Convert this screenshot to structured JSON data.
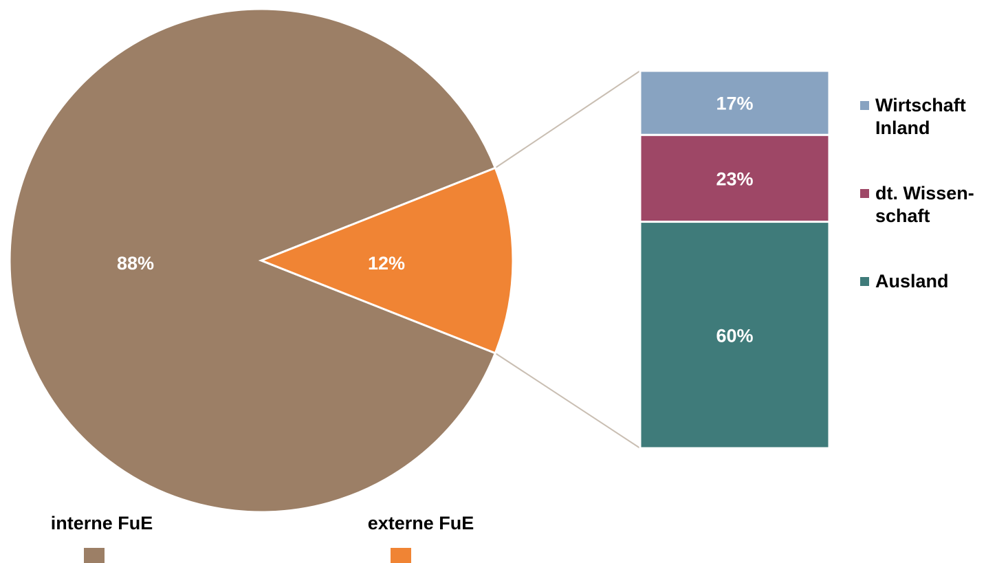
{
  "chart_data": {
    "type": "bar-of-pie",
    "pie": {
      "slices": [
        {
          "name": "interne FuE",
          "value": 88,
          "label": "88%",
          "color": "#9c7f66"
        },
        {
          "name": "externe FuE",
          "value": 12,
          "label": "12%",
          "color": "#f08434"
        }
      ]
    },
    "bar": {
      "breakdown_of": "externe FuE",
      "segments": [
        {
          "name_lines": [
            "Wirtschaft",
            "Inland"
          ],
          "value": 17,
          "label": "17%",
          "color": "#88a3c1"
        },
        {
          "name_lines": [
            "dt. Wissen-",
            "schaft"
          ],
          "value": 23,
          "label": "23%",
          "color": "#9e4766"
        },
        {
          "name_lines": [
            "Ausland"
          ],
          "value": 60,
          "label": "60%",
          "color": "#3f7b7a"
        }
      ]
    },
    "legend_position": "bottom (pie), right (bar)"
  }
}
